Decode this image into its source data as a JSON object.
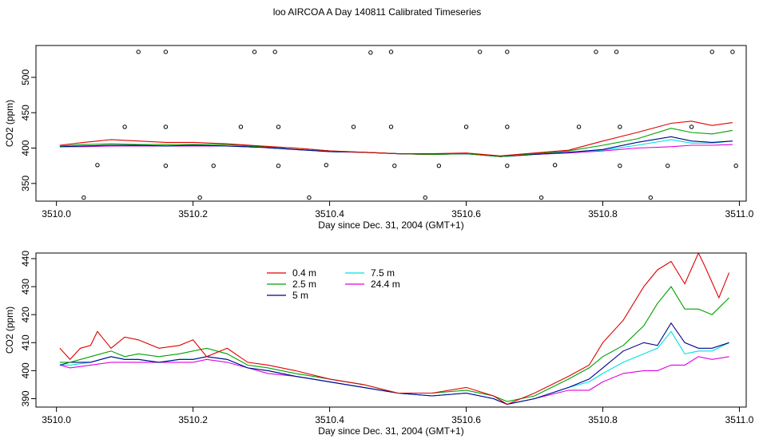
{
  "title": "loo AIRCOA A  Day 140811  Calibrated Timeseries",
  "colors": {
    "0.4 m": "#e00000",
    "2.5 m": "#00a000",
    "5 m": "#00008b",
    "7.5 m": "#00e0e0",
    "24.4 m": "#e000e0",
    "points": "#000000"
  },
  "chart_data": [
    {
      "type": "line",
      "title": "loo AIRCOA A  Day 140811  Calibrated Timeseries",
      "xlabel": "Day since Dec. 31, 2004 (GMT+1)",
      "ylabel": "CO2 (ppm)",
      "xlim": [
        3509.97,
        3511.01
      ],
      "ylim": [
        325,
        545
      ],
      "xticks": [
        "3510.0",
        "3510.2",
        "3510.4",
        "3510.6",
        "3510.8",
        "3511.0"
      ],
      "yticks": [
        "350",
        "400",
        "450",
        "500"
      ],
      "grid": false,
      "legend": "none",
      "series": [
        {
          "name": "0.4 m",
          "x": [
            3510.005,
            3510.04,
            3510.08,
            3510.12,
            3510.16,
            3510.2,
            3510.25,
            3510.3,
            3510.35,
            3510.4,
            3510.45,
            3510.5,
            3510.55,
            3510.6,
            3510.65,
            3510.7,
            3510.75,
            3510.8,
            3510.85,
            3510.9,
            3510.93,
            3510.96,
            3510.99
          ],
          "y": [
            404,
            408,
            412,
            410,
            408,
            408,
            406,
            403,
            400,
            396,
            394,
            392,
            392,
            393,
            389,
            393,
            397,
            410,
            422,
            435,
            438,
            432,
            436
          ]
        },
        {
          "name": "2.5 m",
          "x": [
            3510.005,
            3510.04,
            3510.08,
            3510.12,
            3510.16,
            3510.2,
            3510.25,
            3510.3,
            3510.35,
            3510.4,
            3510.45,
            3510.5,
            3510.55,
            3510.6,
            3510.65,
            3510.7,
            3510.75,
            3510.8,
            3510.85,
            3510.9,
            3510.93,
            3510.96,
            3510.99
          ],
          "y": [
            403,
            405,
            406,
            405,
            405,
            405,
            405,
            402,
            400,
            396,
            394,
            392,
            391,
            392,
            388,
            392,
            396,
            404,
            413,
            428,
            422,
            420,
            425
          ]
        },
        {
          "name": "5 m",
          "x": [
            3510.005,
            3510.04,
            3510.08,
            3510.12,
            3510.16,
            3510.2,
            3510.25,
            3510.3,
            3510.35,
            3510.4,
            3510.45,
            3510.5,
            3510.55,
            3510.6,
            3510.65,
            3510.7,
            3510.75,
            3510.8,
            3510.85,
            3510.9,
            3510.93,
            3510.96,
            3510.99
          ],
          "y": [
            402,
            403,
            404,
            404,
            403,
            404,
            403,
            401,
            398,
            395,
            394,
            392,
            391,
            392,
            388,
            391,
            394,
            398,
            408,
            416,
            410,
            408,
            410
          ]
        },
        {
          "name": "7.5 m",
          "x": [
            3510.005,
            3510.04,
            3510.08,
            3510.12,
            3510.16,
            3510.2,
            3510.25,
            3510.3,
            3510.35,
            3510.4,
            3510.45,
            3510.5,
            3510.55,
            3510.6,
            3510.65,
            3510.7,
            3510.75,
            3510.8,
            3510.85,
            3510.9,
            3510.93,
            3510.96,
            3510.99
          ],
          "y": [
            402,
            403,
            404,
            404,
            403,
            404,
            403,
            401,
            398,
            395,
            394,
            392,
            391,
            392,
            388,
            391,
            394,
            397,
            404,
            412,
            407,
            407,
            410
          ]
        },
        {
          "name": "24.4 m",
          "x": [
            3510.005,
            3510.04,
            3510.08,
            3510.12,
            3510.16,
            3510.2,
            3510.25,
            3510.3,
            3510.35,
            3510.4,
            3510.45,
            3510.5,
            3510.55,
            3510.6,
            3510.65,
            3510.7,
            3510.75,
            3510.8,
            3510.85,
            3510.9,
            3510.93,
            3510.96,
            3510.99
          ],
          "y": [
            402,
            402,
            403,
            403,
            403,
            403,
            403,
            401,
            398,
            395,
            394,
            392,
            391,
            392,
            388,
            391,
            393,
            396,
            400,
            402,
            404,
            404,
            405
          ]
        }
      ],
      "points": {
        "x": [
          3510.04,
          3510.12,
          3510.16,
          3510.21,
          3510.29,
          3510.32,
          3510.37,
          3510.46,
          3510.49,
          3510.54,
          3510.62,
          3510.66,
          3510.71,
          3510.79,
          3510.82,
          3510.87,
          3510.96,
          3510.99,
          3510.06,
          3510.1,
          3510.16,
          3510.23,
          3510.27,
          3510.325,
          3510.395,
          3510.435,
          3510.495,
          3510.56,
          3510.6,
          3510.66,
          3510.73,
          3510.765,
          3510.825,
          3510.895,
          3510.93,
          3510.995,
          3510.16,
          3510.325,
          3510.49,
          3510.66,
          3510.825
        ],
        "y": [
          330,
          536,
          536,
          330,
          536,
          536,
          330,
          535,
          536,
          330,
          536,
          536,
          330,
          536,
          536,
          330,
          536,
          536,
          376,
          430,
          375,
          375,
          430,
          375,
          376,
          430,
          375,
          375,
          430,
          375,
          376,
          430,
          375,
          375,
          430,
          375,
          430,
          430,
          430,
          430,
          430
        ]
      }
    },
    {
      "type": "line",
      "xlabel": "Day since Dec. 31, 2004 (GMT+1)",
      "ylabel": "CO2 (ppm)",
      "xlim": [
        3509.97,
        3511.01
      ],
      "ylim": [
        387,
        442
      ],
      "xticks": [
        "3510.0",
        "3510.2",
        "3510.4",
        "3510.6",
        "3510.8",
        "3511.0"
      ],
      "yticks": [
        "390",
        "400",
        "410",
        "420",
        "430",
        "440"
      ],
      "grid": false,
      "legend": "top-left",
      "legend_entries": [
        "0.4 m",
        "2.5 m",
        "5 m",
        "7.5 m",
        "24.4 m"
      ],
      "series": [
        {
          "name": "0.4 m",
          "x": [
            3510.005,
            3510.02,
            3510.035,
            3510.05,
            3510.06,
            3510.08,
            3510.1,
            3510.12,
            3510.15,
            3510.18,
            3510.2,
            3510.22,
            3510.25,
            3510.28,
            3510.31,
            3510.35,
            3510.4,
            3510.45,
            3510.5,
            3510.55,
            3510.6,
            3510.64,
            3510.66,
            3510.7,
            3510.75,
            3510.78,
            3510.8,
            3510.83,
            3510.86,
            3510.88,
            3510.9,
            3510.92,
            3510.94,
            3510.95,
            3510.97,
            3510.985
          ],
          "y": [
            408,
            404,
            408,
            409,
            414,
            408,
            412,
            411,
            408,
            409,
            411,
            405,
            408,
            403,
            402,
            400,
            397,
            395,
            392,
            392,
            394,
            391,
            388,
            392,
            398,
            402,
            410,
            418,
            430,
            436,
            439,
            431,
            442,
            437,
            426,
            435
          ]
        },
        {
          "name": "2.5 m",
          "x": [
            3510.005,
            3510.02,
            3510.05,
            3510.08,
            3510.1,
            3510.12,
            3510.15,
            3510.18,
            3510.2,
            3510.22,
            3510.25,
            3510.28,
            3510.31,
            3510.35,
            3510.4,
            3510.45,
            3510.5,
            3510.55,
            3510.6,
            3510.64,
            3510.66,
            3510.7,
            3510.75,
            3510.78,
            3510.8,
            3510.83,
            3510.86,
            3510.88,
            3510.9,
            3510.92,
            3510.94,
            3510.96,
            3510.985
          ],
          "y": [
            403,
            403,
            405,
            407,
            405,
            406,
            405,
            406,
            407,
            408,
            406,
            402,
            401,
            399,
            397,
            395,
            392,
            392,
            393,
            391,
            389,
            391,
            397,
            401,
            405,
            409,
            416,
            424,
            430,
            422,
            422,
            420,
            426
          ]
        },
        {
          "name": "5 m",
          "x": [
            3510.005,
            3510.02,
            3510.05,
            3510.08,
            3510.1,
            3510.12,
            3510.15,
            3510.18,
            3510.2,
            3510.22,
            3510.25,
            3510.28,
            3510.31,
            3510.35,
            3510.4,
            3510.45,
            3510.5,
            3510.55,
            3510.6,
            3510.64,
            3510.66,
            3510.7,
            3510.75,
            3510.78,
            3510.8,
            3510.83,
            3510.86,
            3510.88,
            3510.9,
            3510.92,
            3510.94,
            3510.96,
            3510.985
          ],
          "y": [
            402,
            403,
            403,
            405,
            404,
            404,
            403,
            404,
            404,
            405,
            404,
            401,
            400,
            398,
            396,
            394,
            392,
            391,
            392,
            390,
            388,
            390,
            394,
            397,
            401,
            407,
            410,
            409,
            417,
            410,
            408,
            408,
            410
          ]
        },
        {
          "name": "7.5 m",
          "x": [
            3510.005,
            3510.02,
            3510.05,
            3510.08,
            3510.1,
            3510.12,
            3510.15,
            3510.18,
            3510.2,
            3510.22,
            3510.25,
            3510.28,
            3510.31,
            3510.35,
            3510.4,
            3510.45,
            3510.5,
            3510.55,
            3510.6,
            3510.64,
            3510.66,
            3510.7,
            3510.75,
            3510.78,
            3510.8,
            3510.83,
            3510.86,
            3510.88,
            3510.9,
            3510.92,
            3510.94,
            3510.96,
            3510.985
          ],
          "y": [
            402,
            402,
            403,
            405,
            404,
            404,
            403,
            404,
            404,
            405,
            404,
            401,
            400,
            398,
            396,
            394,
            392,
            391,
            392,
            390,
            388,
            390,
            394,
            396,
            399,
            403,
            406,
            408,
            414,
            406,
            407,
            407,
            410
          ]
        },
        {
          "name": "24.4 m",
          "x": [
            3510.005,
            3510.02,
            3510.05,
            3510.08,
            3510.1,
            3510.12,
            3510.15,
            3510.18,
            3510.2,
            3510.22,
            3510.25,
            3510.28,
            3510.31,
            3510.35,
            3510.4,
            3510.45,
            3510.5,
            3510.55,
            3510.6,
            3510.64,
            3510.66,
            3510.7,
            3510.75,
            3510.78,
            3510.8,
            3510.83,
            3510.86,
            3510.88,
            3510.9,
            3510.92,
            3510.94,
            3510.96,
            3510.985
          ],
          "y": [
            402,
            401,
            402,
            403,
            403,
            403,
            403,
            403,
            403,
            404,
            403,
            401,
            399,
            398,
            396,
            394,
            392,
            391,
            392,
            390,
            388,
            390,
            393,
            393,
            396,
            399,
            400,
            400,
            402,
            402,
            405,
            404,
            405
          ]
        }
      ]
    }
  ]
}
